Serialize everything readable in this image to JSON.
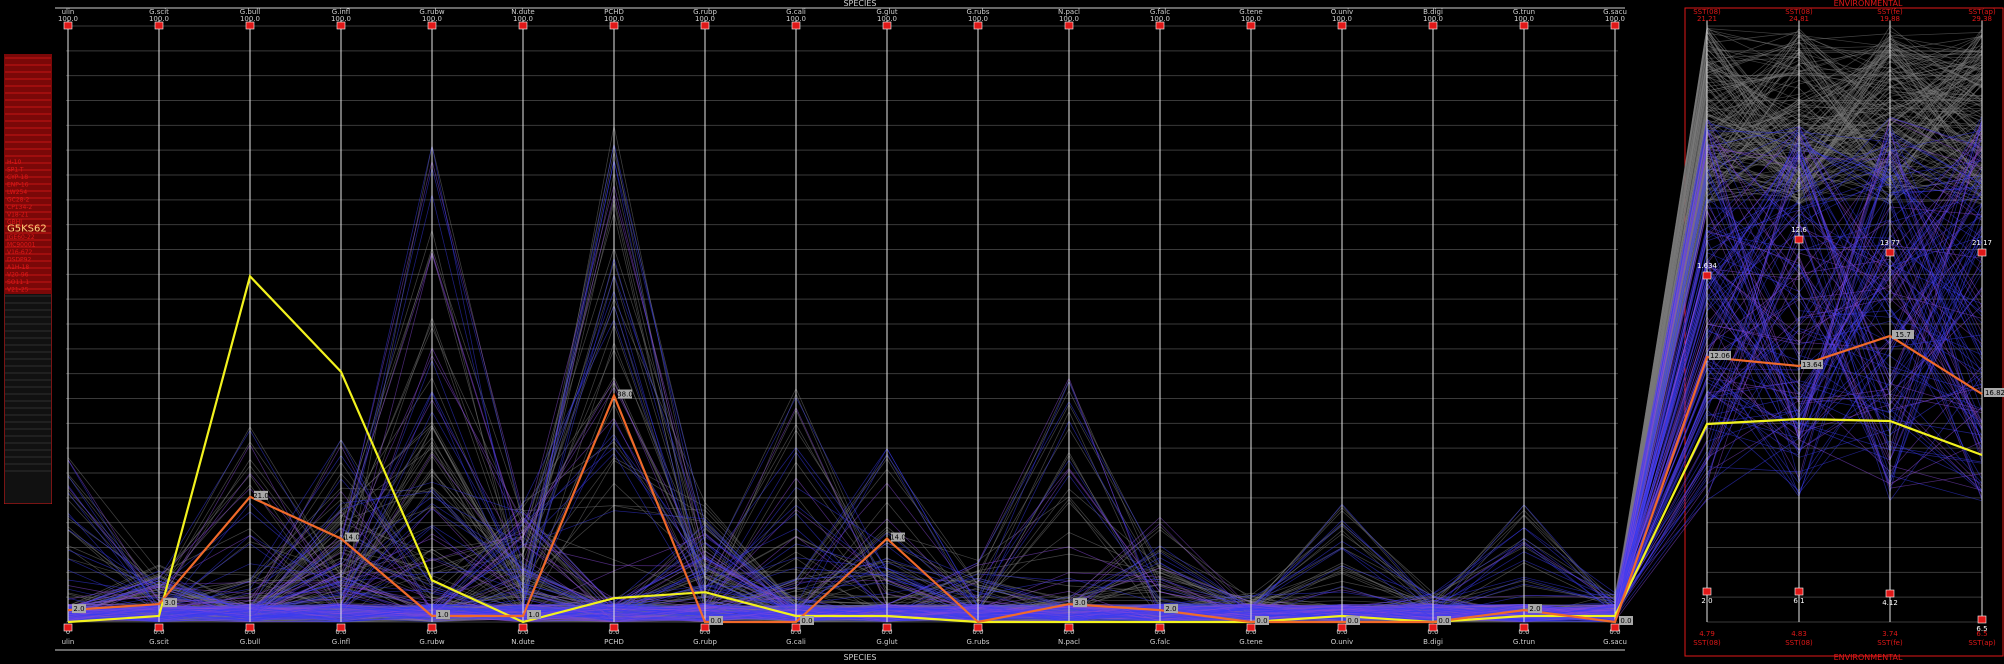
{
  "chart_data": {
    "type": "parallel-coordinates",
    "species_title": "SPECIES",
    "env_title": "ENVIRONMENTAL",
    "axes": [
      {
        "top": "ulin",
        "bottom": "ulin",
        "max": "100.0",
        "min": "0"
      },
      {
        "top": "G.scit",
        "bottom": "G.scit",
        "max": "100.0",
        "min": "0.0"
      },
      {
        "top": "G.bull",
        "bottom": "G.bull",
        "max": "100.0",
        "min": "0.0"
      },
      {
        "top": "G.infl",
        "bottom": "G.infl",
        "max": "100.0",
        "min": "0.0"
      },
      {
        "top": "G.rubw",
        "bottom": "G.rubw",
        "max": "100.0",
        "min": "0.0"
      },
      {
        "top": "N.dute",
        "bottom": "N.dute",
        "max": "100.0",
        "min": "0.0"
      },
      {
        "top": "PCHD",
        "bottom": "PCHD",
        "max": "100.0",
        "min": "0.0"
      },
      {
        "top": "G.rubp",
        "bottom": "G.rubp",
        "max": "100.0",
        "min": "0.0"
      },
      {
        "top": "G.cali",
        "bottom": "G.cali",
        "max": "100.0",
        "min": "0.0"
      },
      {
        "top": "G.glut",
        "bottom": "G.glut",
        "max": "100.0",
        "min": "0.0"
      },
      {
        "top": "G.rubs",
        "bottom": "G.rubs",
        "max": "100.0",
        "min": "0.0"
      },
      {
        "top": "N.pacl",
        "bottom": "N.pacl",
        "max": "100.0",
        "min": "0.0"
      },
      {
        "top": "G.falc",
        "bottom": "G.falc",
        "max": "100.0",
        "min": "0.0"
      },
      {
        "top": "G.tene",
        "bottom": "G.tene",
        "max": "100.0",
        "min": "0.0"
      },
      {
        "top": "O.univ",
        "bottom": "O.univ",
        "max": "100.0",
        "min": "0.0"
      },
      {
        "top": "B.digi",
        "bottom": "B.digi",
        "max": "100.0",
        "min": "0.0"
      },
      {
        "top": "G.trun",
        "bottom": "G.trun",
        "max": "100.0",
        "min": "0.0"
      },
      {
        "top": "G.sacu",
        "bottom": "G.sacu",
        "max": "100.0",
        "min": "0.0"
      }
    ],
    "env_axes": [
      {
        "top": "SST(08)",
        "bottom": "SST(08)",
        "max": "21.21",
        "min": "4.79"
      },
      {
        "top": "SST(08)",
        "bottom": "SST(08)",
        "max": "24.81",
        "min": "4.83"
      },
      {
        "top": "SST(fe)",
        "bottom": "SST(fe)",
        "max": "19.88",
        "min": "3.74"
      },
      {
        "top": "SST(ap)",
        "bottom": "SST(ap)",
        "max": "29.38",
        "min": "6.5"
      }
    ],
    "highlighted_orange": {
      "values": [
        2.0,
        3.0,
        21.0,
        14.0,
        1.0,
        1.0,
        38.0,
        0.0,
        0.0,
        14.0,
        0.0,
        3.0,
        2.0,
        0.0,
        0.0,
        0.0,
        2.0,
        0.0
      ],
      "labels": [
        "2.0",
        "3.0",
        "21.0",
        "14.0",
        "1.0",
        "1.0",
        "38.0",
        "0.0",
        "0.0",
        "14.0",
        "",
        "3.0",
        "2.0",
        "0.0",
        "0.0",
        "0.0",
        "2.0",
        "0.0"
      ],
      "env_labels": [
        "12.06",
        "13.64",
        "15.7",
        "16.82"
      ]
    },
    "highlighted_yellow": {
      "values": [
        0.0,
        1.0,
        58.0,
        42.0,
        7.0,
        0.0,
        4.0,
        5.0,
        1.0,
        1.0,
        0.0,
        0.0,
        0.0,
        0.0,
        1.0,
        0.0,
        1.0,
        1.0
      ]
    },
    "env_point_labels": [
      "1.634",
      "12.6",
      "13.77",
      "21.17"
    ],
    "env_low_labels": [
      "2.0",
      "6.1",
      "4.12",
      "6.5"
    ],
    "sample_list": {
      "selected": "G5KS62",
      "items": [
        "H-10",
        "SP1-T",
        "CYP-18",
        "ENP-16",
        "LW254",
        "GC28-2",
        "CP134-2",
        "V18-21",
        "GBHJ",
        "G5KS62",
        "JGE60-22",
        "MC90001",
        "V16-672",
        "DSDP92",
        "A1H-18",
        "V20-96",
        "SO11-1",
        "V21-25"
      ]
    },
    "colors": {
      "grey": "#7a7a7a",
      "blue": "#3a3cf0",
      "violet": "#8a4ad8",
      "orange": "#f06a2a",
      "yellow": "#f2f21e",
      "red": "#e01818",
      "gridline": "#3a3a3a"
    }
  }
}
